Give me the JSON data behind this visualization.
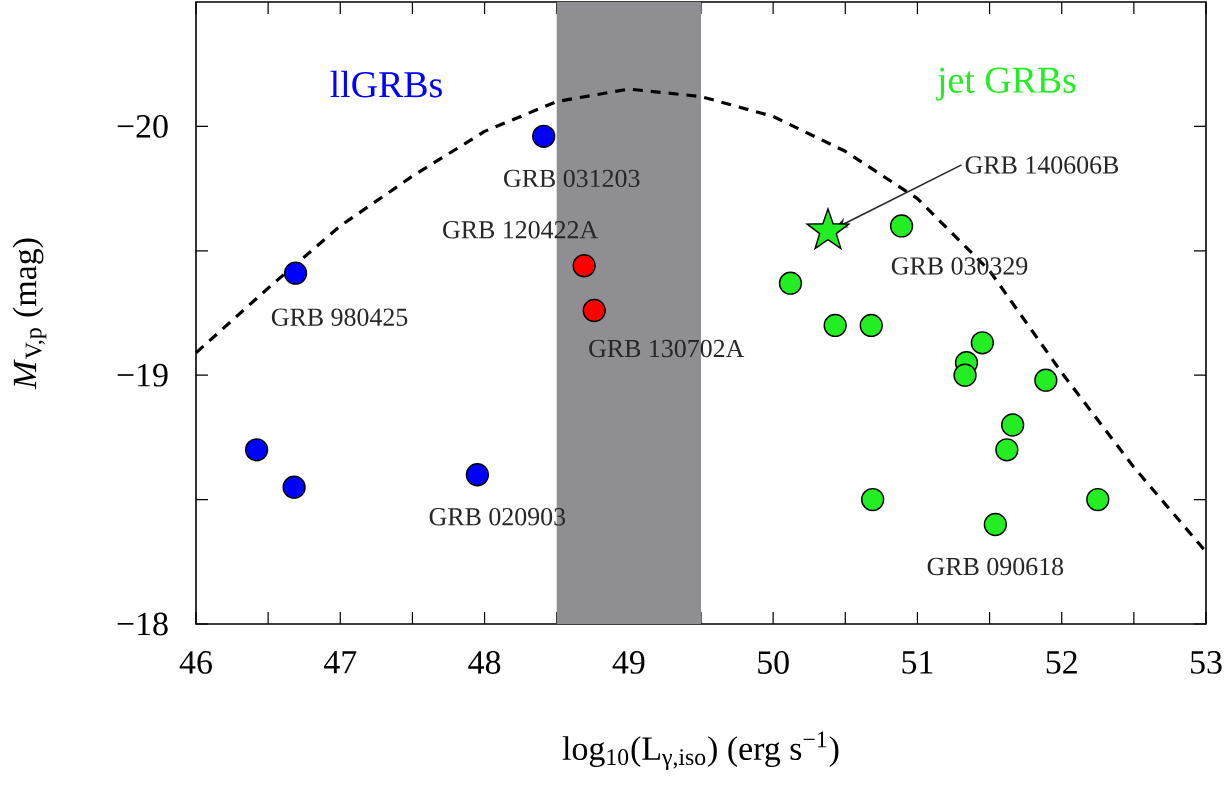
{
  "chart_data": {
    "type": "scatter",
    "xlabel": "log$_{10}$(L$_{γ,iso}$) (erg s$^{−1}$)",
    "ylabel": "*M*$_{V,p}$ (mag)",
    "xlim": [
      46,
      53
    ],
    "ylim": [
      -18,
      -20.5
    ],
    "xticks": [
      46,
      {
        "value": 46.5,
        "label": null
      },
      47,
      {
        "value": 47.5,
        "label": null
      },
      48,
      {
        "value": 48.5,
        "label": null
      },
      49,
      {
        "value": 49.5,
        "label": null
      },
      50,
      {
        "value": 50.5,
        "label": null
      },
      51,
      {
        "value": 51.5,
        "label": null
      },
      52,
      {
        "value": 52.5,
        "label": null
      },
      53
    ],
    "yticks": [
      {
        "value": -20,
        "label": "−20"
      },
      {
        "value": -19.5,
        "label": null
      },
      {
        "value": -19,
        "label": "−19"
      },
      {
        "value": -18.5,
        "label": null
      },
      {
        "value": -18,
        "label": "−18"
      }
    ],
    "bands": [
      {
        "axis": "x",
        "from": 48.5,
        "to": 49.5,
        "color": "#8f8f93"
      }
    ],
    "series": [
      {
        "type": "line",
        "color": "#000000",
        "line_style": "dashed",
        "marker": "none",
        "x": [
          46,
          46.5,
          47,
          47.5,
          48,
          48.5,
          49,
          49.5,
          50,
          50.5,
          51,
          51.5,
          52,
          52.5,
          53
        ],
        "values": [
          -19.09,
          -19.35,
          -19.6,
          -19.8,
          -19.98,
          -20.1,
          -20.15,
          -20.12,
          -20.04,
          -19.9,
          -19.71,
          -19.42,
          -19.01,
          -18.63,
          -18.29
        ]
      },
      {
        "name": "llGRBs",
        "color": "#0000ff",
        "marker": "circle",
        "x": [
          46.69,
          48.41,
          46.42,
          46.68,
          47.95
        ],
        "values": [
          -19.41,
          -19.96,
          -18.7,
          -18.55,
          -18.6
        ]
      },
      {
        "color": "#ff0000",
        "marker": "circle",
        "x": [
          48.69,
          48.76
        ],
        "values": [
          -19.44,
          -19.26
        ]
      },
      {
        "name": "jet GRBs",
        "color": "#22ee22",
        "marker": "circle",
        "x": [
          50.12,
          50.89,
          50.43,
          50.68,
          51.45,
          51.34,
          51.33,
          51.89,
          51.66,
          51.62,
          50.69,
          52.25,
          51.54
        ],
        "values": [
          -19.37,
          -19.6,
          -19.2,
          -19.2,
          -19.13,
          -19.05,
          -19.0,
          -18.98,
          -18.8,
          -18.7,
          -18.5,
          -18.5,
          -18.4
        ]
      },
      {
        "color": "#22ee22",
        "marker": "star",
        "x": [
          50.38
        ],
        "values": [
          -19.58
        ]
      }
    ],
    "annotations": [
      {
        "text": "GRB 980425",
        "x": 46.69,
        "y": -19.41
      },
      {
        "text": "GRB 031203",
        "x": 48.41,
        "y": -19.96
      },
      {
        "text": "GRB 020903",
        "x": 47.95,
        "y": -18.6
      },
      {
        "text": "GRB 120422A",
        "x": 48.69,
        "y": -19.44
      },
      {
        "text": "GRB 130702A",
        "x": 48.76,
        "y": -19.26
      },
      {
        "text": "GRB 140606B",
        "x": 50.38,
        "y": -19.58
      },
      {
        "text": "GRB 030329",
        "x": 50.89,
        "y": -19.6
      },
      {
        "text": "GRB 090618",
        "x": 51.54,
        "y": -18.4
      }
    ]
  }
}
